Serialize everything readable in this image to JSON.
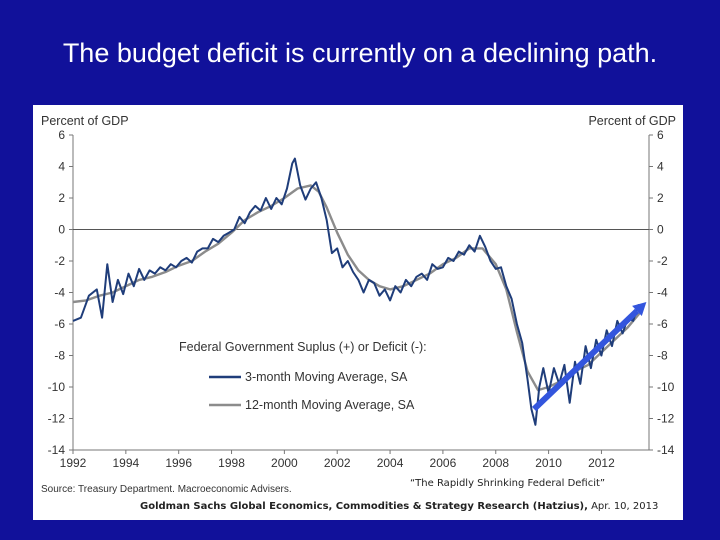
{
  "slide": {
    "title": "The budget deficit is currently on a declining path."
  },
  "chart_data": {
    "type": "line",
    "ylabel_left": "Percent of GDP",
    "ylabel_right": "Percent of GDP",
    "xlim": [
      1992,
      2013.8
    ],
    "ylim": [
      -14,
      6
    ],
    "x_ticks": [
      "1992",
      "1994",
      "1996",
      "1998",
      "2000",
      "2002",
      "2004",
      "2006",
      "2008",
      "2010",
      "2012"
    ],
    "y_ticks": [
      6,
      4,
      2,
      0,
      -2,
      -4,
      -6,
      -8,
      -10,
      -12,
      -14
    ],
    "grid": false,
    "zero_line": true,
    "legend": {
      "title": "Federal Government Suplus (+) or Deficit (-):",
      "placement": "center-left"
    },
    "series": [
      {
        "name": "3-month Moving Average, SA",
        "color": "#1f3d7a",
        "points": [
          [
            1992.0,
            -5.8
          ],
          [
            1992.3,
            -5.6
          ],
          [
            1992.6,
            -4.2
          ],
          [
            1992.9,
            -3.8
          ],
          [
            1993.1,
            -5.6
          ],
          [
            1993.3,
            -2.2
          ],
          [
            1993.5,
            -4.6
          ],
          [
            1993.7,
            -3.2
          ],
          [
            1993.9,
            -4.1
          ],
          [
            1994.1,
            -2.8
          ],
          [
            1994.3,
            -3.6
          ],
          [
            1994.5,
            -2.5
          ],
          [
            1994.7,
            -3.2
          ],
          [
            1994.9,
            -2.6
          ],
          [
            1995.1,
            -2.8
          ],
          [
            1995.3,
            -2.4
          ],
          [
            1995.5,
            -2.6
          ],
          [
            1995.7,
            -2.2
          ],
          [
            1995.9,
            -2.4
          ],
          [
            1996.1,
            -2.0
          ],
          [
            1996.3,
            -1.8
          ],
          [
            1996.5,
            -2.1
          ],
          [
            1996.7,
            -1.4
          ],
          [
            1996.9,
            -1.2
          ],
          [
            1997.1,
            -1.2
          ],
          [
            1997.3,
            -0.6
          ],
          [
            1997.5,
            -0.8
          ],
          [
            1997.7,
            -0.4
          ],
          [
            1997.9,
            -0.2
          ],
          [
            1998.1,
            0.0
          ],
          [
            1998.3,
            0.8
          ],
          [
            1998.5,
            0.4
          ],
          [
            1998.7,
            1.1
          ],
          [
            1998.9,
            1.5
          ],
          [
            1999.1,
            1.2
          ],
          [
            1999.3,
            2.0
          ],
          [
            1999.5,
            1.3
          ],
          [
            1999.7,
            2.0
          ],
          [
            1999.9,
            1.6
          ],
          [
            2000.1,
            2.6
          ],
          [
            2000.3,
            4.2
          ],
          [
            2000.4,
            4.5
          ],
          [
            2000.6,
            2.8
          ],
          [
            2000.8,
            1.9
          ],
          [
            2001.0,
            2.6
          ],
          [
            2001.2,
            3.0
          ],
          [
            2001.4,
            2.0
          ],
          [
            2001.6,
            0.6
          ],
          [
            2001.8,
            -1.5
          ],
          [
            2002.0,
            -1.2
          ],
          [
            2002.2,
            -2.4
          ],
          [
            2002.4,
            -2.0
          ],
          [
            2002.6,
            -2.7
          ],
          [
            2002.8,
            -3.2
          ],
          [
            2003.0,
            -4.0
          ],
          [
            2003.2,
            -3.2
          ],
          [
            2003.4,
            -3.4
          ],
          [
            2003.6,
            -4.2
          ],
          [
            2003.8,
            -3.8
          ],
          [
            2004.0,
            -4.5
          ],
          [
            2004.2,
            -3.6
          ],
          [
            2004.4,
            -4.0
          ],
          [
            2004.6,
            -3.2
          ],
          [
            2004.8,
            -3.6
          ],
          [
            2005.0,
            -3.0
          ],
          [
            2005.2,
            -2.8
          ],
          [
            2005.4,
            -3.2
          ],
          [
            2005.6,
            -2.2
          ],
          [
            2005.8,
            -2.5
          ],
          [
            2006.0,
            -2.4
          ],
          [
            2006.2,
            -1.8
          ],
          [
            2006.4,
            -2.0
          ],
          [
            2006.6,
            -1.4
          ],
          [
            2006.8,
            -1.6
          ],
          [
            2007.0,
            -1.0
          ],
          [
            2007.2,
            -1.4
          ],
          [
            2007.4,
            -0.4
          ],
          [
            2007.6,
            -1.1
          ],
          [
            2007.8,
            -2.0
          ],
          [
            2008.0,
            -2.5
          ],
          [
            2008.2,
            -2.4
          ],
          [
            2008.4,
            -3.6
          ],
          [
            2008.6,
            -4.4
          ],
          [
            2008.8,
            -6.0
          ],
          [
            2009.0,
            -7.2
          ],
          [
            2009.2,
            -9.5
          ],
          [
            2009.35,
            -11.4
          ],
          [
            2009.5,
            -12.4
          ],
          [
            2009.65,
            -10.0
          ],
          [
            2009.8,
            -8.8
          ],
          [
            2010.0,
            -10.4
          ],
          [
            2010.2,
            -8.8
          ],
          [
            2010.4,
            -9.8
          ],
          [
            2010.6,
            -8.6
          ],
          [
            2010.8,
            -11.0
          ],
          [
            2011.0,
            -8.4
          ],
          [
            2011.2,
            -9.8
          ],
          [
            2011.4,
            -7.4
          ],
          [
            2011.6,
            -8.8
          ],
          [
            2011.8,
            -7.0
          ],
          [
            2012.0,
            -8.0
          ],
          [
            2012.2,
            -6.4
          ],
          [
            2012.4,
            -7.4
          ],
          [
            2012.6,
            -5.8
          ],
          [
            2012.8,
            -6.6
          ],
          [
            2013.0,
            -5.6
          ],
          [
            2013.2,
            -5.8
          ],
          [
            2013.4,
            -4.8
          ],
          [
            2013.6,
            -5.0
          ]
        ]
      },
      {
        "name": "12-month Moving Average, SA",
        "color": "#8c8c8c",
        "points": [
          [
            1992.0,
            -4.6
          ],
          [
            1992.5,
            -4.5
          ],
          [
            1993.0,
            -4.2
          ],
          [
            1993.5,
            -4.0
          ],
          [
            1994.0,
            -3.6
          ],
          [
            1994.5,
            -3.2
          ],
          [
            1995.0,
            -3.0
          ],
          [
            1995.5,
            -2.7
          ],
          [
            1996.0,
            -2.3
          ],
          [
            1996.5,
            -2.0
          ],
          [
            1997.0,
            -1.4
          ],
          [
            1997.5,
            -0.9
          ],
          [
            1998.0,
            -0.2
          ],
          [
            1998.5,
            0.6
          ],
          [
            1999.0,
            1.1
          ],
          [
            1999.5,
            1.5
          ],
          [
            2000.0,
            2.0
          ],
          [
            2000.5,
            2.6
          ],
          [
            2001.0,
            2.8
          ],
          [
            2001.3,
            2.4
          ],
          [
            2001.6,
            1.4
          ],
          [
            2002.0,
            -0.2
          ],
          [
            2002.4,
            -1.6
          ],
          [
            2002.8,
            -2.6
          ],
          [
            2003.2,
            -3.2
          ],
          [
            2003.6,
            -3.6
          ],
          [
            2004.0,
            -3.8
          ],
          [
            2004.5,
            -3.6
          ],
          [
            2005.0,
            -3.2
          ],
          [
            2005.5,
            -2.8
          ],
          [
            2006.0,
            -2.2
          ],
          [
            2006.5,
            -1.8
          ],
          [
            2007.0,
            -1.2
          ],
          [
            2007.5,
            -1.2
          ],
          [
            2008.0,
            -2.2
          ],
          [
            2008.4,
            -3.8
          ],
          [
            2008.8,
            -6.5
          ],
          [
            2009.2,
            -9.0
          ],
          [
            2009.6,
            -10.2
          ],
          [
            2010.0,
            -10.0
          ],
          [
            2010.5,
            -9.6
          ],
          [
            2011.0,
            -9.0
          ],
          [
            2011.5,
            -8.6
          ],
          [
            2012.0,
            -7.8
          ],
          [
            2012.5,
            -7.0
          ],
          [
            2013.0,
            -6.2
          ],
          [
            2013.5,
            -5.2
          ]
        ]
      }
    ],
    "annotations": {
      "arrow": {
        "from": [
          2009.45,
          -11.4
        ],
        "to": [
          2013.7,
          -4.6
        ],
        "color": "#3355dd"
      }
    },
    "source": "Source: Treasury Department. Macroeconomic Advisers."
  },
  "footer": {
    "quote": "“The Rapidly Shrinking Federal Deficit”",
    "citation_bold": "Goldman Sachs Global Economics, Commodities & Strategy Research (Hatzius),",
    "citation_date": " Apr. 10, 2013"
  }
}
